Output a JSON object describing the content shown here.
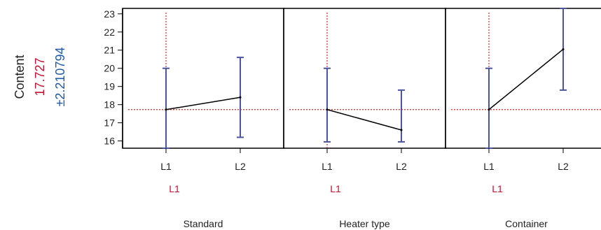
{
  "chart_data": {
    "type": "line",
    "title": "",
    "ylabel": "Content",
    "y_value": "17.727",
    "y_ci": "±2.210794",
    "ylim": [
      15.6,
      23.3
    ],
    "yticks": [
      16,
      17,
      18,
      19,
      20,
      21,
      22,
      23
    ],
    "reference_line": 17.727,
    "colors": {
      "line": "#000000",
      "errorbar": "#4a55a2",
      "reference": "#d62728",
      "level_label": "#c8102e",
      "value_label": "#c8102e",
      "ci_label": "#1f5aa6"
    },
    "panels": [
      {
        "factor": "Standard",
        "level_label": "L1",
        "categories": [
          "L1",
          "L2"
        ],
        "values": [
          17.727,
          18.4
        ],
        "lower": [
          15.5,
          16.2
        ],
        "upper": [
          20.0,
          20.6
        ]
      },
      {
        "factor": "Heater type",
        "level_label": "L1",
        "categories": [
          "L1",
          "L2"
        ],
        "values": [
          17.727,
          16.6
        ],
        "lower": [
          15.95,
          15.95
        ],
        "upper": [
          20.0,
          18.8
        ]
      },
      {
        "factor": "Container",
        "level_label": "L1",
        "categories": [
          "L1",
          "L2"
        ],
        "values": [
          17.727,
          21.05
        ],
        "lower": [
          15.5,
          18.8
        ],
        "upper": [
          20.0,
          23.3
        ]
      }
    ]
  }
}
